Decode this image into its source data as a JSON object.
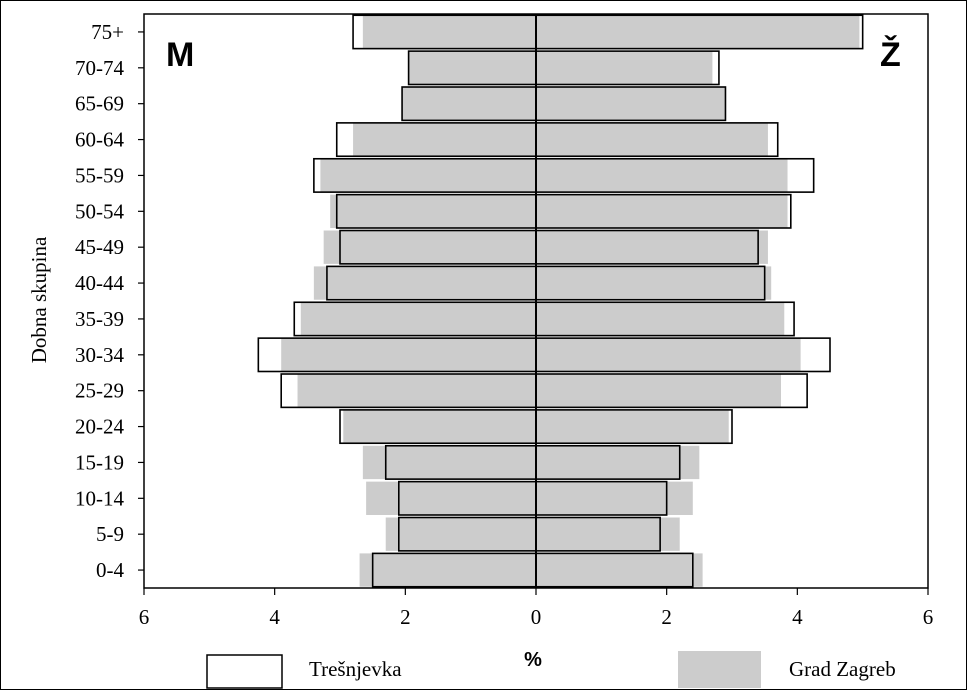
{
  "chart_data": {
    "type": "bar",
    "orientation": "horizontal-pyramid",
    "ylabel": "Dobna skupina",
    "xlabel": "%",
    "left_label": "M",
    "right_label": "Ž",
    "xlim": [
      -6,
      6
    ],
    "x_ticks": [
      "6",
      "4",
      "2",
      "0",
      "2",
      "4",
      "6"
    ],
    "categories": [
      "0-4",
      "5-9",
      "10-14",
      "15-19",
      "20-24",
      "25-29",
      "30-34",
      "35-39",
      "40-44",
      "45-49",
      "50-54",
      "55-59",
      "60-64",
      "65-69",
      "70-74",
      "75+"
    ],
    "series": [
      {
        "name": "Grad Zagreb",
        "color": "#cccccc",
        "male": [
          2.7,
          2.3,
          2.6,
          2.65,
          2.95,
          3.65,
          3.9,
          3.6,
          3.4,
          3.25,
          3.15,
          3.3,
          2.8,
          2.05,
          1.95,
          2.65
        ],
        "female": [
          2.55,
          2.2,
          2.4,
          2.5,
          2.95,
          3.75,
          4.05,
          3.8,
          3.6,
          3.55,
          3.85,
          3.85,
          3.55,
          2.9,
          2.7,
          4.95
        ]
      },
      {
        "name": "Trešnjevka",
        "color": "#ffffff",
        "male": [
          2.5,
          2.1,
          2.1,
          2.3,
          3.0,
          3.9,
          4.25,
          3.7,
          3.2,
          3.0,
          3.05,
          3.4,
          3.05,
          2.05,
          1.95,
          2.8
        ],
        "female": [
          2.4,
          1.9,
          2.0,
          2.2,
          3.0,
          4.15,
          4.5,
          3.95,
          3.5,
          3.4,
          3.9,
          4.25,
          3.7,
          2.9,
          2.8,
          5.0
        ]
      }
    ],
    "legend": {
      "position": "bottom",
      "items": [
        "Trešnjevka",
        "Grad Zagreb"
      ]
    },
    "grid": false
  }
}
